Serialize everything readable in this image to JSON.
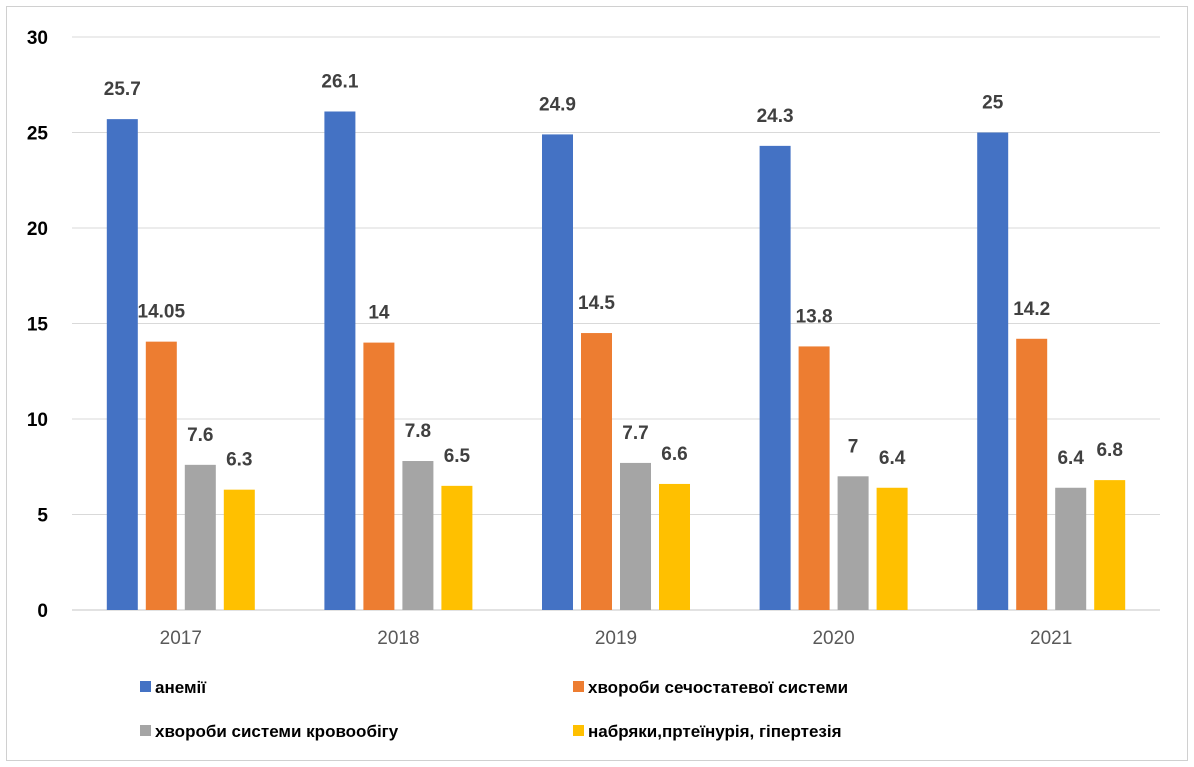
{
  "chart_data": {
    "type": "bar",
    "title": "",
    "xlabel": "",
    "ylabel": "",
    "ylim": [
      0,
      30
    ],
    "yticks": [
      0,
      5,
      10,
      15,
      20,
      25,
      30
    ],
    "grid": true,
    "legend_position": "bottom",
    "categories": [
      "2017",
      "2018",
      "2019",
      "2020",
      "2021"
    ],
    "series": [
      {
        "name": "анемії",
        "color": "#4472c4",
        "values": [
          25.7,
          26.1,
          24.9,
          24.3,
          25
        ],
        "labels": [
          "25.7",
          "26.1",
          "24.9",
          "24.3",
          "25"
        ]
      },
      {
        "name": "хвороби сечостатевої системи",
        "color": "#ed7d31",
        "values": [
          14.05,
          14,
          14.5,
          13.8,
          14.2
        ],
        "labels": [
          "14.05",
          "14",
          "14.5",
          "13.8",
          "14.2"
        ]
      },
      {
        "name": "хвороби системи кровообігу",
        "color": "#a5a5a5",
        "values": [
          7.6,
          7.8,
          7.7,
          7,
          6.4
        ],
        "labels": [
          "7.6",
          "7.8",
          "7.7",
          "7",
          "6.4"
        ]
      },
      {
        "name": "набряки,пртеїнурія, гіпертезія",
        "color": "#ffc000",
        "values": [
          6.3,
          6.5,
          6.6,
          6.4,
          6.8
        ],
        "labels": [
          "6.3",
          "6.5",
          "6.6",
          "6.4",
          "6.8"
        ]
      }
    ]
  }
}
